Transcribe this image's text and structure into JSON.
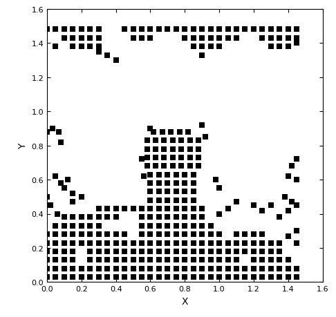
{
  "chart_data": {
    "type": "scatter",
    "xlabel": "X",
    "ylabel": "Y",
    "color": "#000000",
    "marker": "s",
    "xlim": [
      0.0,
      1.6
    ],
    "ylim": [
      0.0,
      1.6
    ],
    "xticks": [
      0.0,
      0.2,
      0.4,
      0.6,
      0.8,
      1.0,
      1.2,
      1.4,
      1.6
    ],
    "yticks": [
      0.0,
      0.2,
      0.4,
      0.6,
      0.8,
      1.0,
      1.2,
      1.4,
      1.6
    ],
    "points": [
      [
        0.0,
        0.03
      ],
      [
        0.05,
        0.03
      ],
      [
        0.1,
        0.03
      ],
      [
        0.15,
        0.03
      ],
      [
        0.2,
        0.03
      ],
      [
        0.25,
        0.03
      ],
      [
        0.3,
        0.03
      ],
      [
        0.35,
        0.03
      ],
      [
        0.4,
        0.03
      ],
      [
        0.45,
        0.03
      ],
      [
        0.5,
        0.03
      ],
      [
        0.55,
        0.03
      ],
      [
        0.6,
        0.03
      ],
      [
        0.65,
        0.03
      ],
      [
        0.7,
        0.03
      ],
      [
        0.75,
        0.03
      ],
      [
        0.8,
        0.03
      ],
      [
        0.85,
        0.03
      ],
      [
        0.9,
        0.03
      ],
      [
        0.95,
        0.03
      ],
      [
        1.0,
        0.03
      ],
      [
        1.05,
        0.03
      ],
      [
        1.1,
        0.03
      ],
      [
        1.15,
        0.03
      ],
      [
        1.2,
        0.03
      ],
      [
        1.25,
        0.03
      ],
      [
        1.3,
        0.03
      ],
      [
        1.35,
        0.03
      ],
      [
        1.4,
        0.03
      ],
      [
        1.45,
        0.03
      ],
      [
        0.0,
        0.08
      ],
      [
        0.05,
        0.08
      ],
      [
        0.1,
        0.08
      ],
      [
        0.15,
        0.08
      ],
      [
        0.2,
        0.08
      ],
      [
        0.25,
        0.08
      ],
      [
        0.3,
        0.08
      ],
      [
        0.35,
        0.08
      ],
      [
        0.4,
        0.08
      ],
      [
        0.45,
        0.08
      ],
      [
        0.5,
        0.08
      ],
      [
        0.55,
        0.08
      ],
      [
        0.6,
        0.08
      ],
      [
        0.65,
        0.08
      ],
      [
        0.7,
        0.08
      ],
      [
        0.75,
        0.08
      ],
      [
        0.8,
        0.08
      ],
      [
        0.85,
        0.08
      ],
      [
        0.9,
        0.08
      ],
      [
        0.95,
        0.08
      ],
      [
        1.0,
        0.08
      ],
      [
        1.05,
        0.08
      ],
      [
        1.1,
        0.08
      ],
      [
        1.15,
        0.08
      ],
      [
        1.2,
        0.08
      ],
      [
        1.25,
        0.08
      ],
      [
        1.3,
        0.08
      ],
      [
        1.35,
        0.08
      ],
      [
        1.4,
        0.08
      ],
      [
        1.45,
        0.08
      ],
      [
        0.0,
        0.13
      ],
      [
        0.05,
        0.13
      ],
      [
        0.1,
        0.13
      ],
      [
        0.15,
        0.13
      ],
      [
        0.25,
        0.13
      ],
      [
        0.3,
        0.13
      ],
      [
        0.35,
        0.13
      ],
      [
        0.4,
        0.13
      ],
      [
        0.45,
        0.13
      ],
      [
        0.5,
        0.13
      ],
      [
        0.55,
        0.13
      ],
      [
        0.6,
        0.13
      ],
      [
        0.65,
        0.13
      ],
      [
        0.7,
        0.13
      ],
      [
        0.75,
        0.13
      ],
      [
        0.8,
        0.13
      ],
      [
        0.85,
        0.13
      ],
      [
        0.9,
        0.13
      ],
      [
        0.95,
        0.13
      ],
      [
        1.0,
        0.13
      ],
      [
        1.05,
        0.13
      ],
      [
        1.1,
        0.13
      ],
      [
        1.2,
        0.13
      ],
      [
        1.25,
        0.13
      ],
      [
        1.3,
        0.13
      ],
      [
        1.35,
        0.13
      ],
      [
        1.4,
        0.13
      ],
      [
        0.0,
        0.18
      ],
      [
        0.05,
        0.18
      ],
      [
        0.1,
        0.18
      ],
      [
        0.15,
        0.18
      ],
      [
        0.25,
        0.18
      ],
      [
        0.3,
        0.18
      ],
      [
        0.35,
        0.18
      ],
      [
        0.4,
        0.18
      ],
      [
        0.45,
        0.18
      ],
      [
        0.5,
        0.18
      ],
      [
        0.55,
        0.18
      ],
      [
        0.6,
        0.18
      ],
      [
        0.65,
        0.18
      ],
      [
        0.7,
        0.18
      ],
      [
        0.75,
        0.18
      ],
      [
        0.8,
        0.18
      ],
      [
        0.85,
        0.18
      ],
      [
        0.9,
        0.18
      ],
      [
        0.95,
        0.18
      ],
      [
        1.0,
        0.18
      ],
      [
        1.05,
        0.18
      ],
      [
        1.1,
        0.18
      ],
      [
        1.15,
        0.18
      ],
      [
        1.2,
        0.18
      ],
      [
        1.25,
        0.18
      ],
      [
        1.3,
        0.18
      ],
      [
        1.35,
        0.18
      ],
      [
        0.0,
        0.23
      ],
      [
        0.05,
        0.23
      ],
      [
        0.1,
        0.23
      ],
      [
        0.15,
        0.23
      ],
      [
        0.2,
        0.23
      ],
      [
        0.25,
        0.23
      ],
      [
        0.3,
        0.23
      ],
      [
        0.35,
        0.23
      ],
      [
        0.4,
        0.23
      ],
      [
        0.45,
        0.23
      ],
      [
        0.5,
        0.23
      ],
      [
        0.55,
        0.23
      ],
      [
        0.6,
        0.23
      ],
      [
        0.65,
        0.23
      ],
      [
        0.7,
        0.23
      ],
      [
        0.75,
        0.23
      ],
      [
        0.8,
        0.23
      ],
      [
        0.85,
        0.23
      ],
      [
        0.9,
        0.23
      ],
      [
        0.95,
        0.23
      ],
      [
        1.0,
        0.23
      ],
      [
        1.05,
        0.23
      ],
      [
        1.1,
        0.23
      ],
      [
        1.15,
        0.23
      ],
      [
        1.2,
        0.23
      ],
      [
        1.25,
        0.23
      ],
      [
        1.3,
        0.23
      ],
      [
        1.35,
        0.23
      ],
      [
        1.4,
        0.27
      ],
      [
        1.45,
        0.3
      ],
      [
        1.45,
        0.23
      ],
      [
        0.0,
        0.28
      ],
      [
        0.05,
        0.28
      ],
      [
        0.1,
        0.28
      ],
      [
        0.15,
        0.28
      ],
      [
        0.2,
        0.28
      ],
      [
        0.25,
        0.28
      ],
      [
        0.3,
        0.28
      ],
      [
        0.35,
        0.28
      ],
      [
        0.4,
        0.28
      ],
      [
        0.45,
        0.28
      ],
      [
        0.55,
        0.28
      ],
      [
        0.6,
        0.28
      ],
      [
        0.65,
        0.28
      ],
      [
        0.7,
        0.28
      ],
      [
        0.75,
        0.28
      ],
      [
        0.8,
        0.28
      ],
      [
        0.85,
        0.28
      ],
      [
        0.9,
        0.28
      ],
      [
        0.95,
        0.28
      ],
      [
        1.0,
        0.28
      ],
      [
        1.1,
        0.28
      ],
      [
        1.15,
        0.28
      ],
      [
        1.2,
        0.28
      ],
      [
        1.25,
        0.28
      ],
      [
        0.05,
        0.33
      ],
      [
        0.1,
        0.33
      ],
      [
        0.15,
        0.33
      ],
      [
        0.2,
        0.33
      ],
      [
        0.25,
        0.33
      ],
      [
        0.3,
        0.33
      ],
      [
        0.55,
        0.33
      ],
      [
        0.6,
        0.33
      ],
      [
        0.65,
        0.33
      ],
      [
        0.7,
        0.33
      ],
      [
        0.75,
        0.33
      ],
      [
        0.8,
        0.33
      ],
      [
        0.85,
        0.33
      ],
      [
        0.9,
        0.33
      ],
      [
        0.95,
        0.33
      ],
      [
        0.1,
        0.38
      ],
      [
        0.15,
        0.38
      ],
      [
        0.2,
        0.38
      ],
      [
        0.25,
        0.38
      ],
      [
        0.3,
        0.38
      ],
      [
        0.35,
        0.38
      ],
      [
        0.4,
        0.38
      ],
      [
        0.55,
        0.38
      ],
      [
        0.6,
        0.38
      ],
      [
        0.65,
        0.38
      ],
      [
        0.7,
        0.38
      ],
      [
        0.75,
        0.38
      ],
      [
        0.8,
        0.38
      ],
      [
        0.85,
        0.38
      ],
      [
        0.9,
        0.38
      ],
      [
        0.3,
        0.43
      ],
      [
        0.35,
        0.43
      ],
      [
        0.4,
        0.43
      ],
      [
        0.45,
        0.43
      ],
      [
        0.5,
        0.43
      ],
      [
        0.55,
        0.43
      ],
      [
        0.6,
        0.43
      ],
      [
        0.65,
        0.43
      ],
      [
        0.7,
        0.43
      ],
      [
        0.75,
        0.43
      ],
      [
        0.8,
        0.43
      ],
      [
        0.85,
        0.43
      ],
      [
        0.9,
        0.43
      ],
      [
        0.6,
        0.48
      ],
      [
        0.65,
        0.48
      ],
      [
        0.7,
        0.48
      ],
      [
        0.75,
        0.48
      ],
      [
        0.8,
        0.48
      ],
      [
        0.85,
        0.48
      ],
      [
        0.6,
        0.53
      ],
      [
        0.65,
        0.53
      ],
      [
        0.7,
        0.53
      ],
      [
        0.75,
        0.53
      ],
      [
        0.8,
        0.53
      ],
      [
        0.85,
        0.53
      ],
      [
        0.6,
        0.58
      ],
      [
        0.65,
        0.58
      ],
      [
        0.7,
        0.58
      ],
      [
        0.75,
        0.58
      ],
      [
        0.8,
        0.58
      ],
      [
        0.85,
        0.58
      ],
      [
        0.6,
        0.63
      ],
      [
        0.65,
        0.63
      ],
      [
        0.7,
        0.63
      ],
      [
        0.75,
        0.63
      ],
      [
        0.8,
        0.63
      ],
      [
        0.85,
        0.63
      ],
      [
        0.58,
        0.68
      ],
      [
        0.63,
        0.68
      ],
      [
        0.68,
        0.68
      ],
      [
        0.73,
        0.68
      ],
      [
        0.78,
        0.68
      ],
      [
        0.83,
        0.68
      ],
      [
        0.88,
        0.68
      ],
      [
        0.58,
        0.73
      ],
      [
        0.63,
        0.73
      ],
      [
        0.68,
        0.73
      ],
      [
        0.73,
        0.73
      ],
      [
        0.78,
        0.73
      ],
      [
        0.83,
        0.73
      ],
      [
        0.88,
        0.73
      ],
      [
        0.58,
        0.78
      ],
      [
        0.63,
        0.78
      ],
      [
        0.68,
        0.78
      ],
      [
        0.73,
        0.78
      ],
      [
        0.78,
        0.78
      ],
      [
        0.83,
        0.78
      ],
      [
        0.88,
        0.78
      ],
      [
        0.58,
        0.83
      ],
      [
        0.63,
        0.83
      ],
      [
        0.68,
        0.83
      ],
      [
        0.73,
        0.83
      ],
      [
        0.78,
        0.83
      ],
      [
        0.83,
        0.83
      ],
      [
        0.88,
        0.83
      ],
      [
        0.62,
        0.88
      ],
      [
        0.67,
        0.88
      ],
      [
        0.72,
        0.88
      ],
      [
        0.77,
        0.88
      ],
      [
        0.82,
        0.88
      ],
      [
        0.9,
        0.92
      ],
      [
        0.92,
        0.85
      ],
      [
        0.55,
        0.72
      ],
      [
        0.56,
        0.62
      ],
      [
        0.6,
        0.9
      ],
      [
        0.0,
        0.88
      ],
      [
        0.03,
        0.9
      ],
      [
        0.07,
        0.88
      ],
      [
        0.08,
        0.82
      ],
      [
        0.05,
        0.62
      ],
      [
        0.08,
        0.58
      ],
      [
        0.1,
        0.55
      ],
      [
        0.12,
        0.6
      ],
      [
        0.15,
        0.52
      ],
      [
        0.0,
        0.5
      ],
      [
        0.02,
        0.45
      ],
      [
        0.06,
        0.4
      ],
      [
        0.15,
        0.47
      ],
      [
        0.2,
        0.5
      ],
      [
        1.45,
        0.72
      ],
      [
        1.42,
        0.68
      ],
      [
        1.4,
        0.62
      ],
      [
        1.45,
        0.6
      ],
      [
        1.38,
        0.5
      ],
      [
        1.42,
        0.47
      ],
      [
        1.3,
        0.45
      ],
      [
        1.25,
        0.42
      ],
      [
        1.2,
        0.45
      ],
      [
        1.1,
        0.47
      ],
      [
        1.05,
        0.43
      ],
      [
        1.0,
        0.4
      ],
      [
        1.35,
        0.38
      ],
      [
        1.4,
        0.42
      ],
      [
        1.45,
        0.45
      ],
      [
        0.98,
        0.6
      ],
      [
        1.0,
        0.55
      ],
      [
        0.0,
        1.48
      ],
      [
        0.05,
        1.48
      ],
      [
        0.1,
        1.48
      ],
      [
        0.15,
        1.48
      ],
      [
        0.2,
        1.48
      ],
      [
        0.25,
        1.48
      ],
      [
        0.3,
        1.48
      ],
      [
        0.45,
        1.48
      ],
      [
        0.5,
        1.48
      ],
      [
        0.55,
        1.48
      ],
      [
        0.6,
        1.48
      ],
      [
        0.65,
        1.48
      ],
      [
        0.7,
        1.48
      ],
      [
        0.75,
        1.48
      ],
      [
        0.8,
        1.48
      ],
      [
        0.85,
        1.48
      ],
      [
        0.9,
        1.48
      ],
      [
        0.95,
        1.48
      ],
      [
        1.0,
        1.48
      ],
      [
        1.05,
        1.48
      ],
      [
        1.1,
        1.48
      ],
      [
        1.15,
        1.48
      ],
      [
        1.2,
        1.48
      ],
      [
        1.25,
        1.48
      ],
      [
        1.3,
        1.48
      ],
      [
        1.35,
        1.48
      ],
      [
        1.4,
        1.48
      ],
      [
        1.45,
        1.48
      ],
      [
        0.1,
        1.43
      ],
      [
        0.15,
        1.43
      ],
      [
        0.2,
        1.43
      ],
      [
        0.25,
        1.43
      ],
      [
        0.3,
        1.43
      ],
      [
        0.5,
        1.43
      ],
      [
        0.55,
        1.43
      ],
      [
        0.6,
        1.43
      ],
      [
        0.8,
        1.43
      ],
      [
        0.85,
        1.43
      ],
      [
        0.9,
        1.43
      ],
      [
        0.95,
        1.43
      ],
      [
        1.0,
        1.43
      ],
      [
        1.05,
        1.43
      ],
      [
        1.1,
        1.43
      ],
      [
        1.25,
        1.43
      ],
      [
        1.3,
        1.43
      ],
      [
        1.35,
        1.43
      ],
      [
        1.4,
        1.43
      ],
      [
        1.45,
        1.43
      ],
      [
        0.15,
        1.38
      ],
      [
        0.2,
        1.38
      ],
      [
        0.25,
        1.38
      ],
      [
        0.3,
        1.38
      ],
      [
        0.85,
        1.38
      ],
      [
        0.9,
        1.38
      ],
      [
        0.95,
        1.38
      ],
      [
        1.3,
        1.38
      ],
      [
        1.35,
        1.38
      ],
      [
        1.4,
        1.38
      ],
      [
        0.3,
        1.35
      ],
      [
        0.35,
        1.33
      ],
      [
        0.4,
        1.3
      ],
      [
        0.9,
        1.33
      ],
      [
        1.0,
        1.38
      ],
      [
        1.45,
        1.4
      ],
      [
        0.05,
        1.38
      ]
    ]
  }
}
